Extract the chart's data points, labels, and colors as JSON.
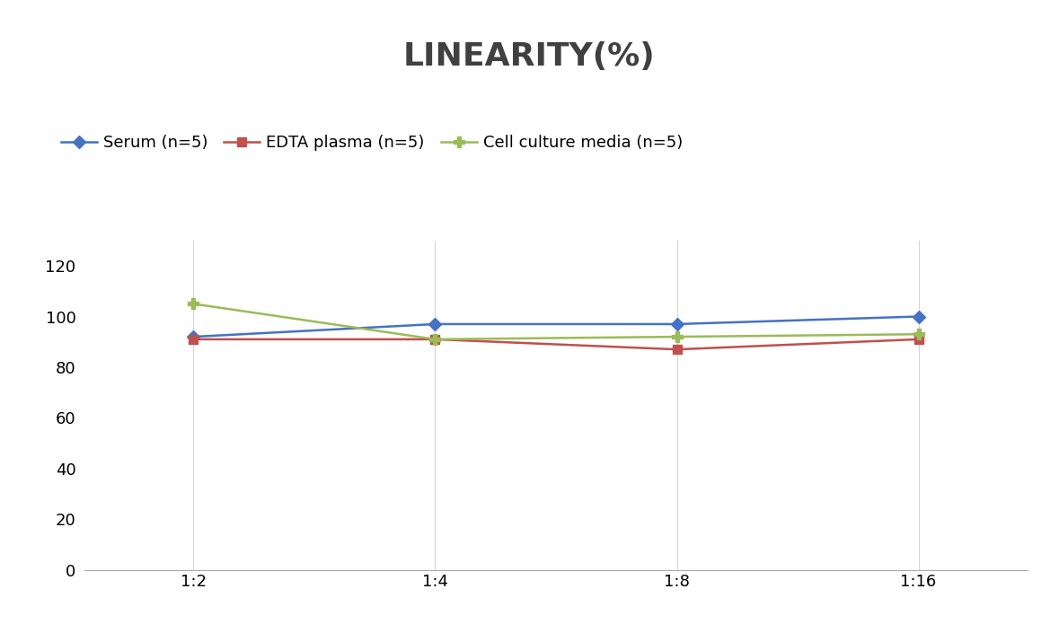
{
  "title": "LINEARITY(%)",
  "x_labels": [
    "1:2",
    "1:4",
    "1:8",
    "1:16"
  ],
  "x_positions": [
    0,
    1,
    2,
    3
  ],
  "series": [
    {
      "label": "Serum (n=5)",
      "values": [
        92,
        97,
        97,
        100
      ],
      "color": "#4472C4",
      "marker": "D",
      "markersize": 7,
      "linewidth": 1.8
    },
    {
      "label": "EDTA plasma (n=5)",
      "values": [
        91,
        91,
        87,
        91
      ],
      "color": "#C0504D",
      "marker": "s",
      "markersize": 7,
      "linewidth": 1.8
    },
    {
      "label": "Cell culture media (n=5)",
      "values": [
        105,
        91,
        92,
        93
      ],
      "color": "#9BBB59",
      "marker": "P",
      "markersize": 8,
      "linewidth": 1.8
    }
  ],
  "ylim": [
    0,
    130
  ],
  "yticks": [
    0,
    20,
    40,
    60,
    80,
    100,
    120
  ],
  "background_color": "#ffffff",
  "title_fontsize": 26,
  "legend_fontsize": 13,
  "tick_fontsize": 13,
  "grid_color": "#d5d5d5",
  "title_color": "#404040"
}
